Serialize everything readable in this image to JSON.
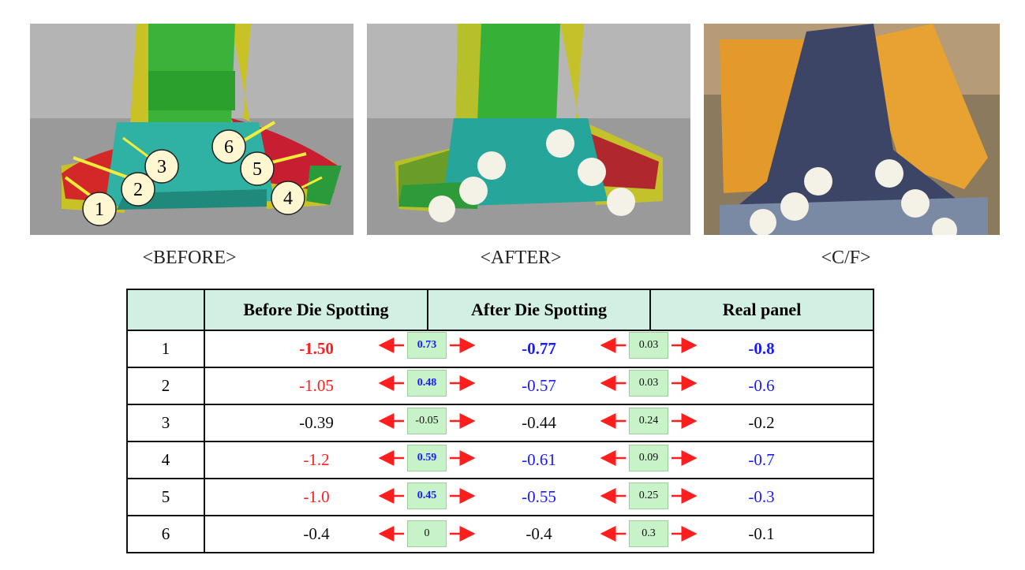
{
  "captions": {
    "before": "<BEFORE>",
    "after": "<AFTER>",
    "cf": "<C/F>"
  },
  "markers": [
    "1",
    "2",
    "3",
    "4",
    "5",
    "6"
  ],
  "table": {
    "headers": [
      "",
      "Before Die Spotting",
      "After Die Spotting",
      "Real panel"
    ],
    "rows": [
      {
        "no": "1",
        "before": "-1.50",
        "d1": "0.73",
        "after": "-0.77",
        "d2": "0.03",
        "real": "-0.8"
      },
      {
        "no": "2",
        "before": "-1.05",
        "d1": "0.48",
        "after": "-0.57",
        "d2": "0.03",
        "real": "-0.6"
      },
      {
        "no": "3",
        "before": "-0.39",
        "d1": "-0.05",
        "after": "-0.44",
        "d2": "0.24",
        "real": "-0.2"
      },
      {
        "no": "4",
        "before": "-1.2",
        "d1": "0.59",
        "after": "-0.61",
        "d2": "0.09",
        "real": "-0.7"
      },
      {
        "no": "5",
        "before": "-1.0",
        "d1": "0.45",
        "after": "-0.55",
        "d2": "0.25",
        "real": "-0.3"
      },
      {
        "no": "6",
        "before": "-0.4",
        "d1": "0",
        "after": "-0.4",
        "d2": "0.3",
        "real": "-0.1"
      }
    ]
  },
  "colors": {
    "red": "#ff1e1e",
    "blue": "#1a1aff",
    "header_bg": "#d2efe4",
    "delta_bg": "#c8f2c8"
  }
}
